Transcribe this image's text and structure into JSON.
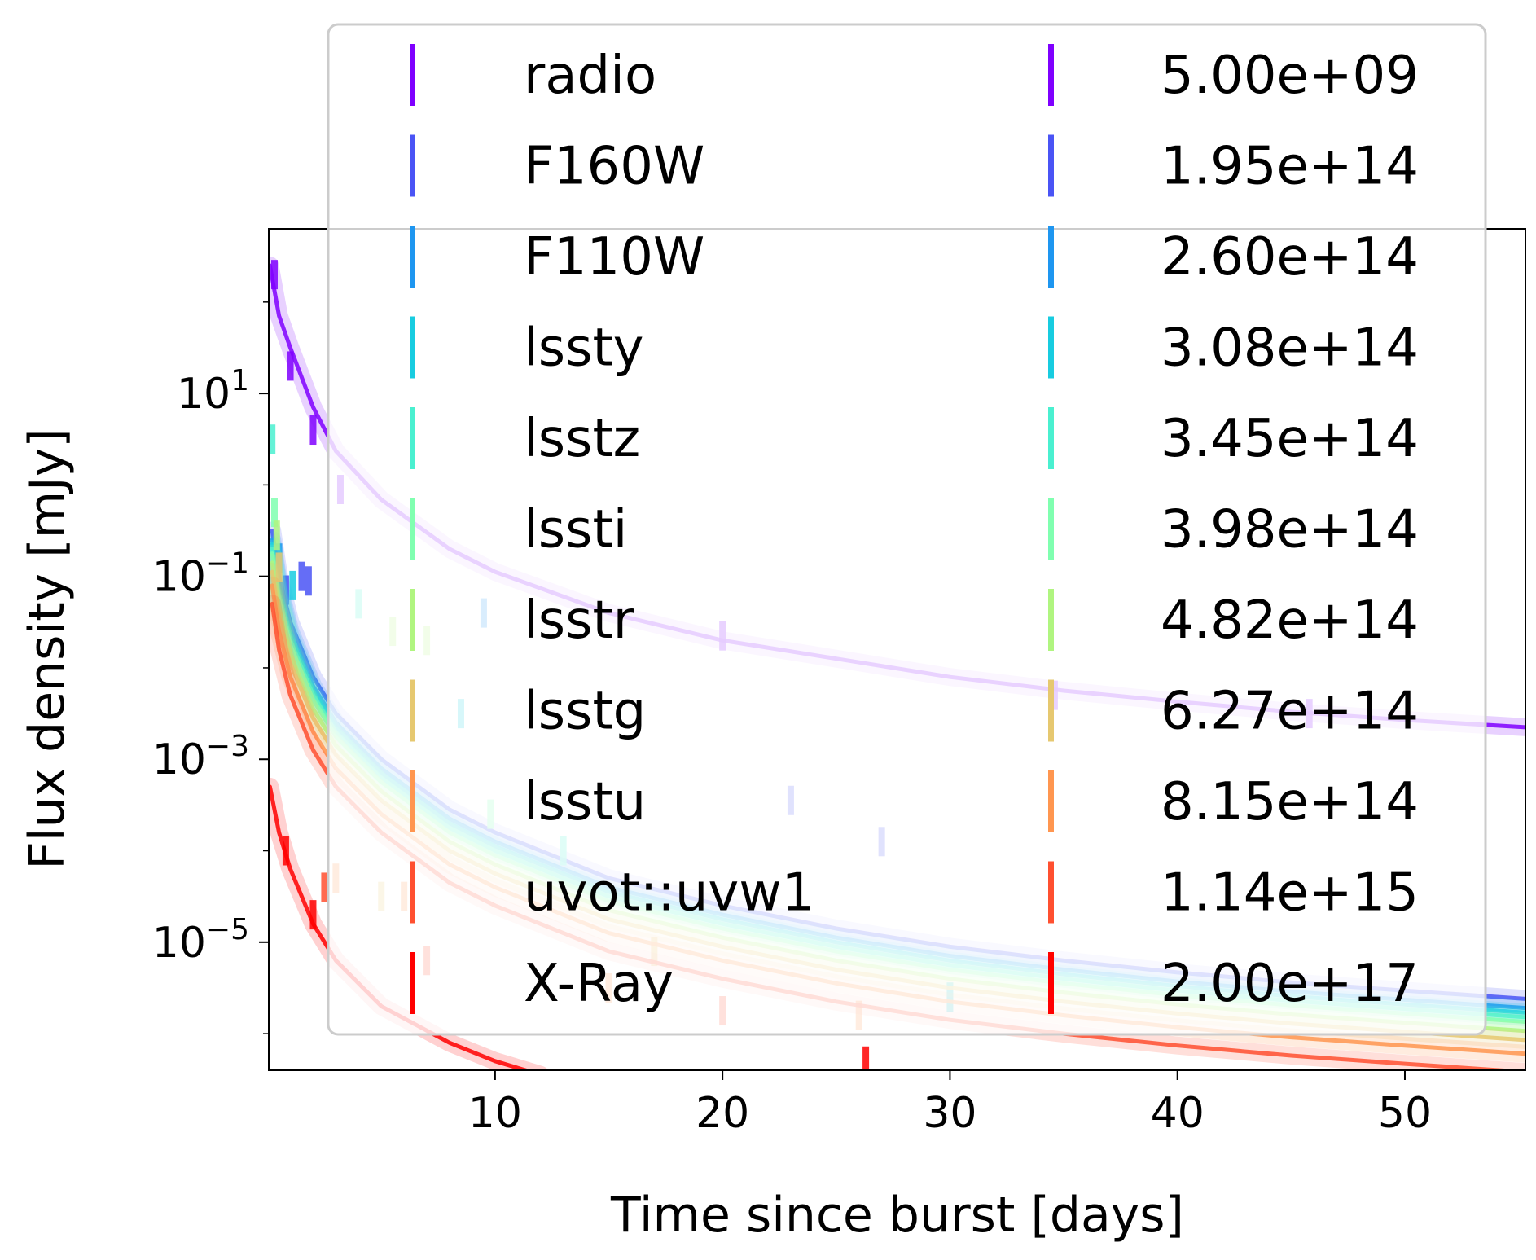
{
  "chart_data": {
    "type": "line",
    "xlabel": "Time since burst [days]",
    "ylabel": "Flux density [mJy]",
    "xlim": [
      0.05,
      55.3
    ],
    "ylim_log10": [
      -6.4,
      2.8
    ],
    "yscale": "log",
    "xticks": [
      {
        "value": 10,
        "label": "10"
      },
      {
        "value": 20,
        "label": "20"
      },
      {
        "value": 30,
        "label": "30"
      },
      {
        "value": 40,
        "label": "40"
      },
      {
        "value": 50,
        "label": "50"
      }
    ],
    "yticks": [
      {
        "exp": 1,
        "base": "10",
        "sup": "1"
      },
      {
        "exp": -1,
        "base": "10",
        "sup": "−1"
      },
      {
        "exp": -3,
        "base": "10",
        "sup": "−3"
      },
      {
        "exp": -5,
        "base": "10",
        "sup": "−5"
      }
    ],
    "legend_placement": "upper center (overlapping axes)",
    "grid": false,
    "series": [
      {
        "name": "radio",
        "frequency": "5.00e+09",
        "color": "#7f00ff",
        "curve": [
          [
            0.1,
            2.4
          ],
          [
            0.5,
            1.85
          ],
          [
            1,
            1.5
          ],
          [
            2,
            0.85
          ],
          [
            3,
            0.37
          ],
          [
            5,
            -0.16
          ],
          [
            8,
            -0.7
          ],
          [
            10,
            -0.95
          ],
          [
            15,
            -1.4
          ],
          [
            20,
            -1.7
          ],
          [
            25,
            -1.9
          ],
          [
            30,
            -2.1
          ],
          [
            35,
            -2.25
          ],
          [
            40,
            -2.37
          ],
          [
            45,
            -2.48
          ],
          [
            50,
            -2.57
          ],
          [
            55.3,
            -2.65
          ]
        ],
        "points": [
          [
            0.3,
            2.3
          ],
          [
            1,
            1.3
          ],
          [
            2,
            0.6
          ],
          [
            3.2,
            -0.05
          ],
          [
            20,
            -1.65
          ],
          [
            34.6,
            -2.3
          ],
          [
            45.8,
            -2.5
          ]
        ]
      },
      {
        "name": "F160W",
        "frequency": "1.95e+14",
        "color": "#4a54f5",
        "curve": [
          [
            0.2,
            -0.5
          ],
          [
            0.5,
            -1.0
          ],
          [
            1,
            -1.5
          ],
          [
            2,
            -2.1
          ],
          [
            3,
            -2.5
          ],
          [
            5,
            -3.0
          ],
          [
            8,
            -3.55
          ],
          [
            10,
            -3.8
          ],
          [
            15,
            -4.3
          ],
          [
            20,
            -4.6
          ],
          [
            25,
            -4.85
          ],
          [
            30,
            -5.05
          ],
          [
            35,
            -5.2
          ],
          [
            40,
            -5.33
          ],
          [
            45,
            -5.44
          ],
          [
            50,
            -5.53
          ],
          [
            55.3,
            -5.62
          ]
        ],
        "points": [
          [
            0.8,
            -1.15
          ],
          [
            1.5,
            -1.0
          ],
          [
            1.8,
            -1.05
          ],
          [
            27,
            -3.9
          ],
          [
            23,
            -3.45
          ]
        ]
      },
      {
        "name": "F110W",
        "frequency": "2.60e+14",
        "color": "#1e96f0",
        "curve": [
          [
            0.2,
            -0.6
          ],
          [
            0.5,
            -1.1
          ],
          [
            1,
            -1.6
          ],
          [
            2,
            -2.2
          ],
          [
            3,
            -2.6
          ],
          [
            5,
            -3.1
          ],
          [
            8,
            -3.65
          ],
          [
            10,
            -3.9
          ],
          [
            15,
            -4.4
          ],
          [
            20,
            -4.7
          ],
          [
            25,
            -4.95
          ],
          [
            30,
            -5.15
          ],
          [
            35,
            -5.3
          ],
          [
            40,
            -5.43
          ],
          [
            45,
            -5.54
          ],
          [
            50,
            -5.63
          ],
          [
            55.3,
            -5.72
          ]
        ],
        "points": [
          [
            0.5,
            -0.8
          ],
          [
            9.5,
            -1.4
          ]
        ]
      },
      {
        "name": "lssty",
        "frequency": "3.08e+14",
        "color": "#18cce0",
        "curve": [
          [
            0.2,
            -0.65
          ],
          [
            0.5,
            -1.15
          ],
          [
            1,
            -1.65
          ],
          [
            2,
            -2.25
          ],
          [
            3,
            -2.65
          ],
          [
            5,
            -3.15
          ],
          [
            8,
            -3.7
          ],
          [
            10,
            -3.95
          ],
          [
            15,
            -4.45
          ],
          [
            20,
            -4.75
          ],
          [
            25,
            -5.0
          ],
          [
            30,
            -5.2
          ],
          [
            35,
            -5.35
          ],
          [
            40,
            -5.48
          ],
          [
            45,
            -5.59
          ],
          [
            50,
            -5.68
          ],
          [
            55.3,
            -5.77
          ]
        ],
        "points": [
          [
            1.1,
            -1.1
          ],
          [
            8.5,
            -2.5
          ],
          [
            30,
            -5.6
          ]
        ]
      },
      {
        "name": "lsstz",
        "frequency": "3.45e+14",
        "color": "#4af0d0",
        "curve": [
          [
            0.2,
            -0.7
          ],
          [
            0.5,
            -1.2
          ],
          [
            1,
            -1.7
          ],
          [
            2,
            -2.3
          ],
          [
            3,
            -2.7
          ],
          [
            5,
            -3.2
          ],
          [
            8,
            -3.75
          ],
          [
            10,
            -4.0
          ],
          [
            15,
            -4.5
          ],
          [
            20,
            -4.8
          ],
          [
            25,
            -5.05
          ],
          [
            30,
            -5.25
          ],
          [
            35,
            -5.4
          ],
          [
            40,
            -5.53
          ],
          [
            45,
            -5.64
          ],
          [
            50,
            -5.73
          ],
          [
            55.3,
            -5.82
          ]
        ],
        "points": [
          [
            0.2,
            0.5
          ],
          [
            4,
            -1.3
          ],
          [
            13,
            -4.0
          ]
        ]
      },
      {
        "name": "lssti",
        "frequency": "3.98e+14",
        "color": "#80ffb0",
        "curve": [
          [
            0.2,
            -0.75
          ],
          [
            0.5,
            -1.25
          ],
          [
            1,
            -1.75
          ],
          [
            2,
            -2.35
          ],
          [
            3,
            -2.75
          ],
          [
            5,
            -3.25
          ],
          [
            8,
            -3.8
          ],
          [
            10,
            -4.05
          ],
          [
            15,
            -4.55
          ],
          [
            20,
            -4.85
          ],
          [
            25,
            -5.1
          ],
          [
            30,
            -5.3
          ],
          [
            35,
            -5.45
          ],
          [
            40,
            -5.58
          ],
          [
            45,
            -5.69
          ],
          [
            50,
            -5.78
          ],
          [
            55.3,
            -5.87
          ]
        ],
        "points": [
          [
            0.3,
            -0.3
          ],
          [
            9.8,
            -3.6
          ]
        ]
      },
      {
        "name": "lsstr",
        "frequency": "4.82e+14",
        "color": "#b0f580",
        "curve": [
          [
            0.2,
            -0.85
          ],
          [
            0.5,
            -1.35
          ],
          [
            1,
            -1.85
          ],
          [
            2,
            -2.45
          ],
          [
            3,
            -2.85
          ],
          [
            5,
            -3.35
          ],
          [
            8,
            -3.9
          ],
          [
            10,
            -4.15
          ],
          [
            15,
            -4.65
          ],
          [
            20,
            -4.95
          ],
          [
            25,
            -5.2
          ],
          [
            30,
            -5.4
          ],
          [
            35,
            -5.55
          ],
          [
            40,
            -5.68
          ],
          [
            45,
            -5.79
          ],
          [
            50,
            -5.88
          ],
          [
            55.3,
            -5.97
          ]
        ],
        "points": [
          [
            0.4,
            -0.55
          ],
          [
            5.5,
            -1.6
          ],
          [
            7,
            -1.7
          ]
        ]
      },
      {
        "name": "lsstg",
        "frequency": "6.27e+14",
        "color": "#e6c870",
        "curve": [
          [
            0.2,
            -0.95
          ],
          [
            0.5,
            -1.45
          ],
          [
            1,
            -1.95
          ],
          [
            2,
            -2.55
          ],
          [
            3,
            -2.95
          ],
          [
            5,
            -3.45
          ],
          [
            8,
            -4.0
          ],
          [
            10,
            -4.25
          ],
          [
            15,
            -4.75
          ],
          [
            20,
            -5.05
          ],
          [
            25,
            -5.3
          ],
          [
            30,
            -5.5
          ],
          [
            35,
            -5.65
          ],
          [
            40,
            -5.78
          ],
          [
            45,
            -5.89
          ],
          [
            50,
            -5.98
          ],
          [
            55.3,
            -6.07
          ]
        ],
        "points": [
          [
            0.5,
            -0.9
          ],
          [
            5,
            -4.5
          ],
          [
            17,
            -5.1
          ]
        ]
      },
      {
        "name": "lsstu",
        "frequency": "8.15e+14",
        "color": "#ff9650",
        "curve": [
          [
            0.2,
            -1.1
          ],
          [
            0.5,
            -1.6
          ],
          [
            1,
            -2.1
          ],
          [
            2,
            -2.7
          ],
          [
            3,
            -3.1
          ],
          [
            5,
            -3.6
          ],
          [
            8,
            -4.15
          ],
          [
            10,
            -4.4
          ],
          [
            15,
            -4.9
          ],
          [
            20,
            -5.2
          ],
          [
            25,
            -5.45
          ],
          [
            30,
            -5.65
          ],
          [
            35,
            -5.8
          ],
          [
            40,
            -5.93
          ],
          [
            45,
            -6.04
          ],
          [
            50,
            -6.13
          ],
          [
            55.3,
            -6.22
          ]
        ],
        "points": [
          [
            3,
            -4.3
          ],
          [
            6,
            -4.5
          ],
          [
            15,
            -5.5
          ],
          [
            26,
            -5.8
          ]
        ]
      },
      {
        "name": "uvot::uvw1",
        "frequency": "1.14e+15",
        "color": "#ff5030",
        "curve": [
          [
            0.2,
            -1.3
          ],
          [
            0.5,
            -1.8
          ],
          [
            1,
            -2.3
          ],
          [
            2,
            -2.9
          ],
          [
            3,
            -3.3
          ],
          [
            5,
            -3.8
          ],
          [
            8,
            -4.35
          ],
          [
            10,
            -4.6
          ],
          [
            15,
            -5.1
          ],
          [
            20,
            -5.4
          ],
          [
            25,
            -5.65
          ],
          [
            30,
            -5.85
          ],
          [
            35,
            -6.0
          ],
          [
            40,
            -6.13
          ],
          [
            45,
            -6.24
          ],
          [
            50,
            -6.33
          ],
          [
            55.3,
            -6.42
          ]
        ],
        "points": [
          [
            2.5,
            -4.4
          ],
          [
            7,
            -5.2
          ],
          [
            20,
            -5.75
          ]
        ]
      },
      {
        "name": "X-Ray",
        "frequency": "2.00e+17",
        "color": "#ff0000",
        "curve": [
          [
            0.1,
            -3.3
          ],
          [
            0.5,
            -3.8
          ],
          [
            1,
            -4.2
          ],
          [
            2,
            -4.8
          ],
          [
            3,
            -5.2
          ],
          [
            5,
            -5.7
          ],
          [
            8,
            -6.1
          ],
          [
            10,
            -6.3
          ],
          [
            12,
            -6.45
          ]
        ],
        "points": [
          [
            0.8,
            -4.0
          ],
          [
            2,
            -4.7
          ],
          [
            26.3,
            -6.3
          ]
        ]
      }
    ]
  }
}
